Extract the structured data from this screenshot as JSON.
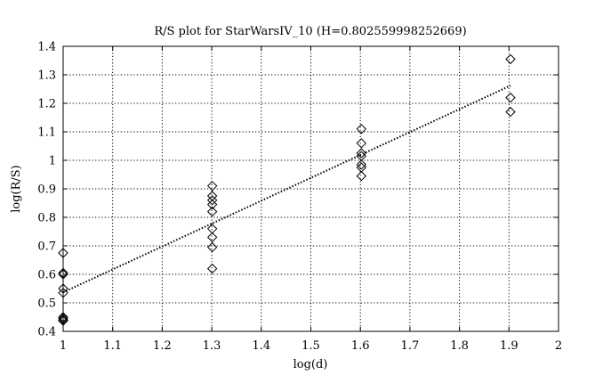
{
  "chart_data": {
    "type": "scatter",
    "title": "R/S plot for StarWarsIV_10 (H=0.802559998252669)",
    "xlabel": "log(d)",
    "ylabel": "log(R/S)",
    "xlim": [
      1,
      2
    ],
    "ylim": [
      0.4,
      1.4
    ],
    "xticks": [
      "1",
      "1.1",
      "1.2",
      "1.3",
      "1.4",
      "1.5",
      "1.6",
      "1.7",
      "1.8",
      "1.9",
      "2"
    ],
    "yticks": [
      "0.4",
      "0.5",
      "0.6",
      "0.7",
      "0.8",
      "0.9",
      "1",
      "1.1",
      "1.2",
      "1.3",
      "1.4"
    ],
    "grid": true,
    "marker": "diamond",
    "series": [
      {
        "points": [
          [
            1.0,
            0.675
          ],
          [
            1.0,
            0.605
          ],
          [
            1.0,
            0.6
          ],
          [
            1.0,
            0.55
          ],
          [
            1.0,
            0.535
          ],
          [
            1.0,
            0.45
          ],
          [
            1.0,
            0.445
          ],
          [
            1.0,
            0.44
          ],
          [
            1.0,
            0.437
          ],
          [
            1.301,
            0.91
          ],
          [
            1.301,
            0.875
          ],
          [
            1.301,
            0.86
          ],
          [
            1.301,
            0.845
          ],
          [
            1.301,
            0.82
          ],
          [
            1.301,
            0.76
          ],
          [
            1.301,
            0.73
          ],
          [
            1.301,
            0.695
          ],
          [
            1.301,
            0.62
          ],
          [
            1.602,
            1.11
          ],
          [
            1.602,
            1.06
          ],
          [
            1.602,
            1.025
          ],
          [
            1.602,
            1.015
          ],
          [
            1.602,
            0.985
          ],
          [
            1.602,
            0.975
          ],
          [
            1.602,
            0.945
          ],
          [
            1.903,
            1.355
          ],
          [
            1.903,
            1.22
          ],
          [
            1.903,
            1.17
          ]
        ]
      }
    ],
    "fit_line": {
      "style": "dotted",
      "start": [
        1.0,
        0.537
      ],
      "end": [
        1.903,
        1.262
      ]
    }
  }
}
